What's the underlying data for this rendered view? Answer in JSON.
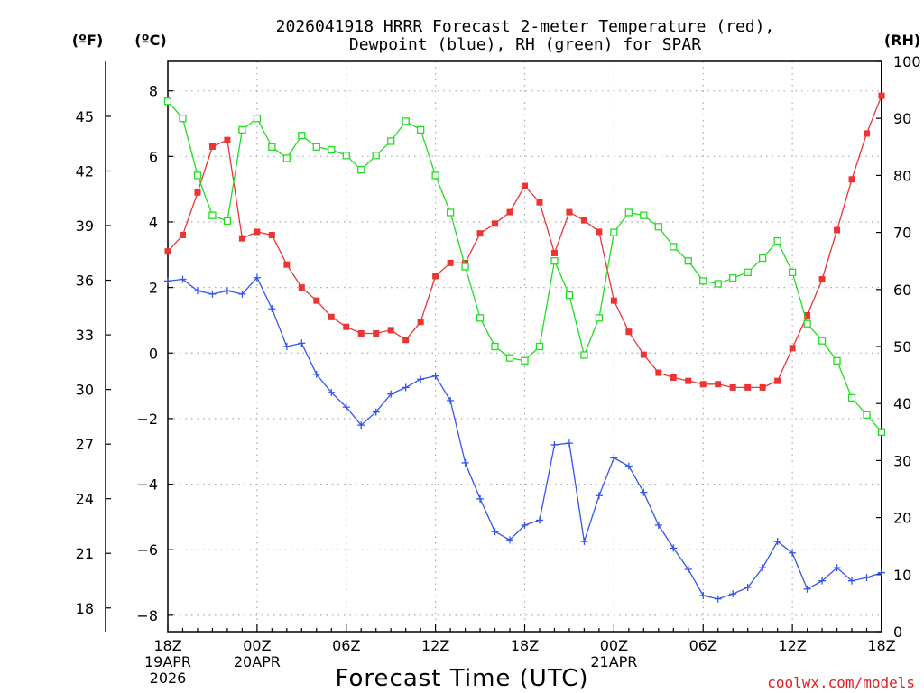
{
  "chart_data": {
    "type": "line",
    "title_line1": "2026041918 HRRR Forecast 2-meter Temperature (red),",
    "title_line2": "Dewpoint (blue), RH (green) for SPAR",
    "xlabel": "Forecast Time (UTC)",
    "left_outer_unit": "(ºF)",
    "left_inner_unit": "(ºC)",
    "right_unit": "(RH)",
    "credit": "coolwx.com/models",
    "x_start_hour": 18,
    "x_end_hour": 66,
    "x_ticks": [
      {
        "hour": 18,
        "lines": [
          "18Z",
          "19APR",
          "2026"
        ]
      },
      {
        "hour": 24,
        "lines": [
          "00Z",
          "20APR"
        ]
      },
      {
        "hour": 30,
        "lines": [
          "06Z"
        ]
      },
      {
        "hour": 36,
        "lines": [
          "12Z"
        ]
      },
      {
        "hour": 42,
        "lines": [
          "18Z"
        ]
      },
      {
        "hour": 48,
        "lines": [
          "00Z",
          "21APR"
        ]
      },
      {
        "hour": 54,
        "lines": [
          "06Z"
        ]
      },
      {
        "hour": 60,
        "lines": [
          "12Z"
        ]
      },
      {
        "hour": 66,
        "lines": [
          "18Z"
        ]
      }
    ],
    "celsius_axis": {
      "ylim": [
        -8.5,
        8.9
      ],
      "ticks": [
        -8,
        -6,
        -4,
        -2,
        0,
        2,
        4,
        6,
        8
      ]
    },
    "fahrenheit_ticks": [
      18,
      21,
      24,
      27,
      30,
      33,
      36,
      39,
      42,
      45
    ],
    "rh_axis": {
      "ylim": [
        0,
        100
      ],
      "ticks": [
        0,
        10,
        20,
        30,
        40,
        50,
        60,
        70,
        80,
        90,
        100
      ]
    },
    "grid": true,
    "series": [
      {
        "name": "Temperature (red)",
        "axis": "celsius",
        "color": "#ee3333",
        "marker": "filled-square",
        "values": [
          3.1,
          3.6,
          4.9,
          6.3,
          6.5,
          3.5,
          3.7,
          3.6,
          2.7,
          2.0,
          1.6,
          1.1,
          0.8,
          0.6,
          0.6,
          0.7,
          0.4,
          0.95,
          2.35,
          2.75,
          2.75,
          3.65,
          3.95,
          4.3,
          5.1,
          4.6,
          3.05,
          4.3,
          4.05,
          3.7,
          1.6,
          0.65,
          -0.05,
          -0.6,
          -0.75,
          -0.85,
          -0.95,
          -0.95,
          -1.05,
          -1.05,
          -1.05,
          -0.85,
          0.15,
          1.15,
          2.25,
          3.75,
          5.3,
          6.7,
          7.85
        ]
      },
      {
        "name": "Dewpoint (blue)",
        "axis": "celsius",
        "color": "#3355ee",
        "marker": "plus",
        "values": [
          2.2,
          2.25,
          1.9,
          1.8,
          1.9,
          1.8,
          2.3,
          1.35,
          0.2,
          0.3,
          -0.65,
          -1.2,
          -1.65,
          -2.2,
          -1.8,
          -1.25,
          -1.05,
          -0.8,
          -0.7,
          -1.45,
          -3.35,
          -4.45,
          -5.45,
          -5.7,
          -5.25,
          -5.1,
          -2.8,
          -2.75,
          -5.75,
          -4.35,
          -3.2,
          -3.45,
          -4.25,
          -5.25,
          -5.95,
          -6.6,
          -7.4,
          -7.5,
          -7.35,
          -7.15,
          -6.55,
          -5.75,
          -6.1,
          -7.2,
          -6.95,
          -6.55,
          -6.95,
          -6.85,
          -6.7
        ]
      },
      {
        "name": "RH (green)",
        "axis": "rh",
        "color": "#22dd22",
        "marker": "open-square",
        "values": [
          93,
          90,
          80,
          73,
          72,
          88,
          90,
          85,
          83,
          87,
          85,
          84.5,
          83.5,
          81,
          83.5,
          86,
          89.5,
          88,
          80,
          73.5,
          64,
          55,
          50,
          48,
          47.5,
          50,
          65,
          59,
          48.5,
          55,
          70,
          73.5,
          73,
          71,
          67.5,
          65,
          61.5,
          61,
          62,
          63,
          65.5,
          68.5,
          63,
          54,
          51,
          47.5,
          41,
          38,
          35
        ]
      }
    ]
  }
}
